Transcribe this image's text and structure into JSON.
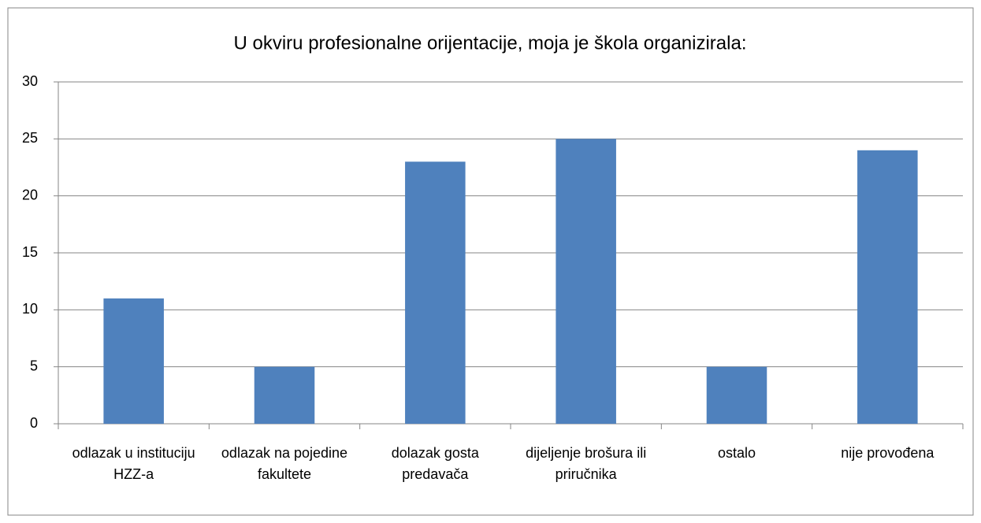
{
  "chart_data": {
    "type": "bar",
    "title": "U okviru profesionalne orijentacije, moja je škola organizirala:",
    "categories": [
      "odlazak u instituciju HZZ-a",
      "odlazak na pojedine fakultete",
      "dolazak gosta predavača",
      "dijeljenje brošura ili priručnika",
      "ostalo",
      "nije provođena"
    ],
    "values": [
      11,
      5,
      23,
      25,
      5,
      24
    ],
    "color": "#4f81bd",
    "ylim": [
      0,
      30
    ],
    "yticks": [
      0,
      5,
      10,
      15,
      20,
      25,
      30
    ],
    "grid": true
  }
}
